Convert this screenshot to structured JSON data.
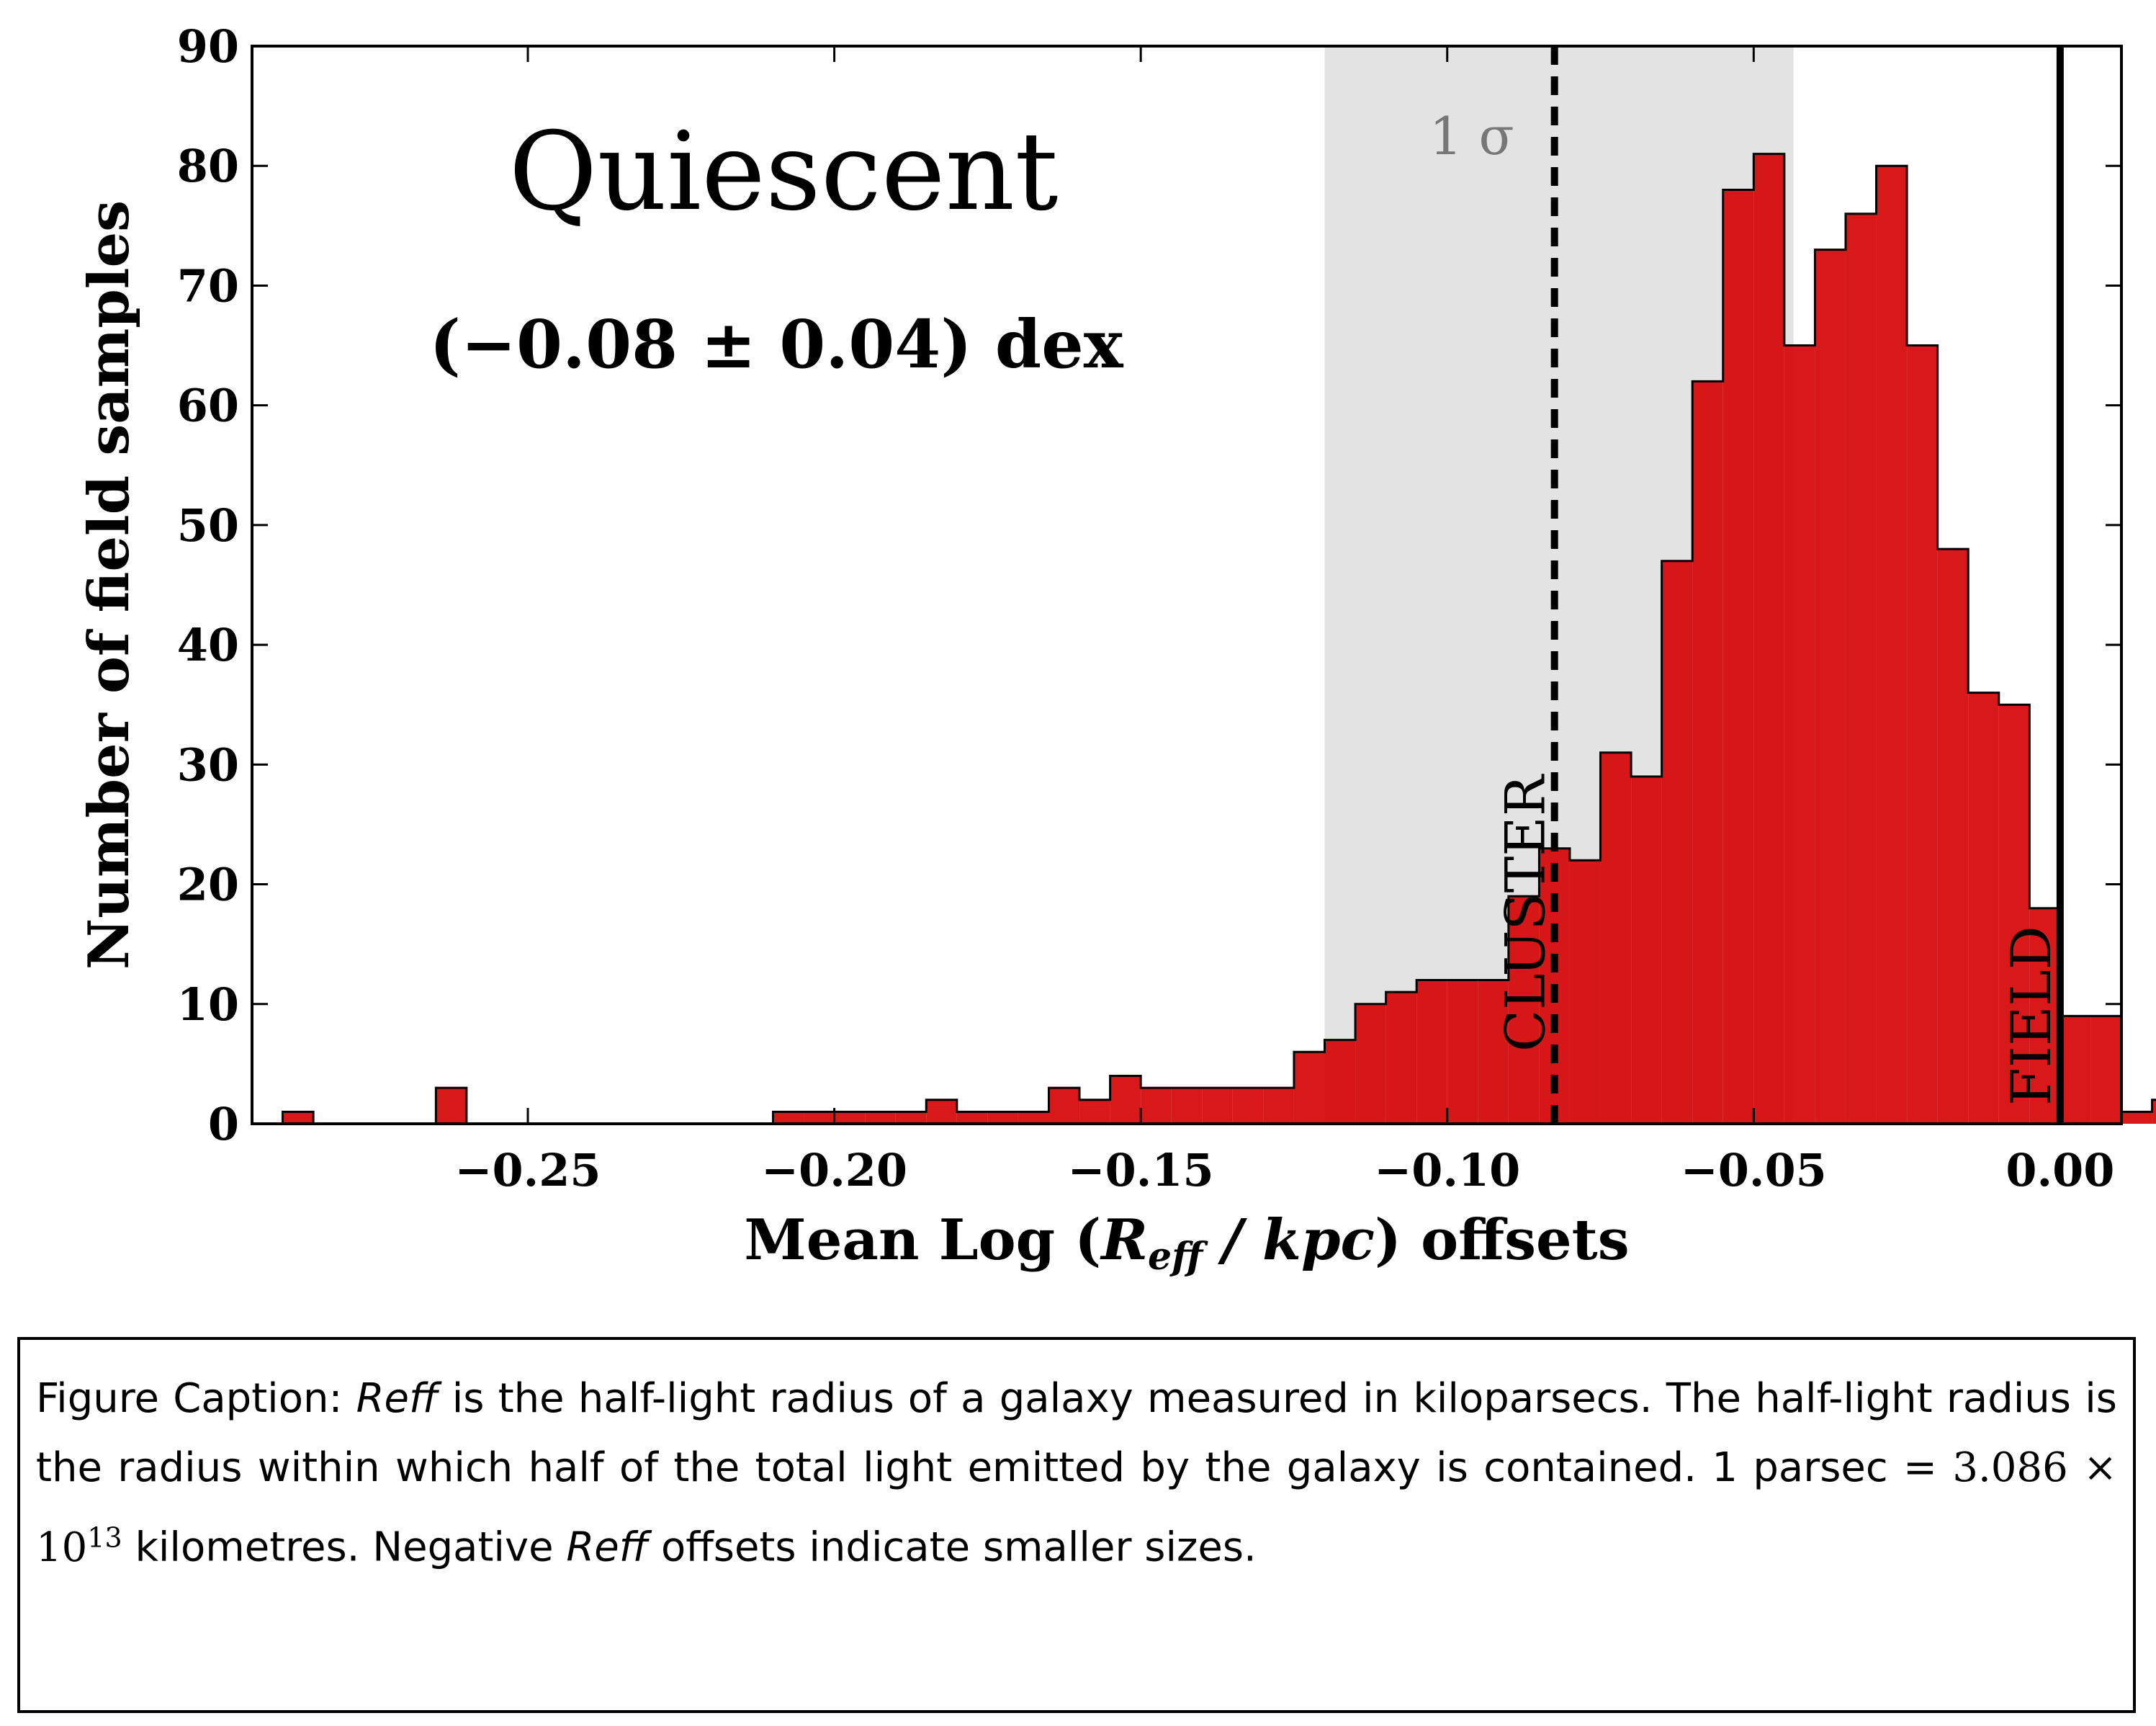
{
  "chart_data": {
    "type": "bar",
    "title": "Quiescent",
    "subtitle": "(−0.08 ± 0.04) dex",
    "xlabel": "Mean Log (Reff / kpc) offsets",
    "ylabel": "Number of field samples",
    "xlim": [
      -0.295,
      0.01
    ],
    "ylim": [
      0,
      90
    ],
    "xticks": [
      -0.25,
      -0.2,
      -0.15,
      -0.1,
      -0.05,
      0.0
    ],
    "xtick_labels": [
      "−0.25",
      "−0.20",
      "−0.15",
      "−0.10",
      "−0.05",
      "0.00"
    ],
    "yticks": [
      0,
      10,
      20,
      30,
      40,
      50,
      60,
      70,
      80,
      90
    ],
    "ytick_labels": [
      "0",
      "10",
      "20",
      "30",
      "40",
      "50",
      "60",
      "70",
      "80",
      "90"
    ],
    "bin_start": -0.29,
    "bin_width": 0.005,
    "values": [
      1,
      0,
      0,
      0,
      0,
      3,
      0,
      0,
      0,
      0,
      0,
      0,
      0,
      0,
      0,
      0,
      1,
      1,
      1,
      1,
      1,
      2,
      1,
      1,
      1,
      3,
      2,
      4,
      3,
      3,
      3,
      3,
      3,
      6,
      7,
      10,
      11,
      12,
      12,
      12,
      19,
      23,
      22,
      31,
      29,
      47,
      62,
      78,
      81,
      65,
      73,
      76,
      80,
      65,
      48,
      36,
      35,
      18,
      9,
      9,
      1,
      2
    ],
    "bar_color": "#d50000",
    "sigma_band": {
      "from": -0.12,
      "to": -0.0435,
      "color": "#d9d9d9",
      "label": "1 σ"
    },
    "cluster_line": {
      "x": -0.0825,
      "label": "CLUSTER",
      "style": "dashed"
    },
    "field_line": {
      "x": 0.0,
      "label": "FIELD",
      "style": "solid"
    },
    "grid": false
  },
  "caption": {
    "prefix": "Figure Caption:",
    "reff": "Reff",
    "p1": "is the half-light radius of a galaxy measured in kiloparsecs. The half-light radius is the radius within which half of the total light emitted by the galaxy is contained. 1 parsec =",
    "math": "3.086 × 10",
    "exp": "13",
    "p2": "kilometres. Negative",
    "p3": "offsets indicate smaller sizes."
  }
}
